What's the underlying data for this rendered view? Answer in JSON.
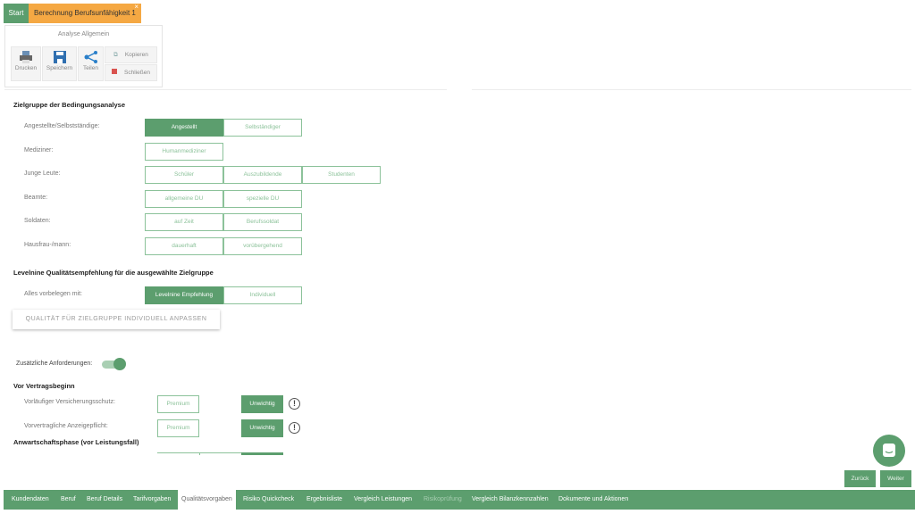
{
  "tabs": {
    "start": "Start",
    "calc": "Berechnung Berufsunfähigkeit 1",
    "close": "×"
  },
  "toolbar": {
    "title": "Analyse Allgemein",
    "print": "Drucken",
    "save": "Speichern",
    "share": "Teilen",
    "copy": "Kopieren",
    "close": "Schließen"
  },
  "section1": {
    "title": "Zielgruppe der Bedingungsanalyse",
    "rows": [
      {
        "label": "Angestellte/Selbstständige:",
        "options": [
          "Angestellt",
          "Selbständiger"
        ],
        "selected": 0
      },
      {
        "label": "Mediziner:",
        "options": [
          "Humanmediziner"
        ],
        "selected": -1
      },
      {
        "label": "Junge Leute:",
        "options": [
          "Schüler",
          "Auszubildende",
          "Studenten"
        ],
        "selected": -1
      },
      {
        "label": "Beamte:",
        "options": [
          "allgemeine DU",
          "spezielle DU"
        ],
        "selected": -1
      },
      {
        "label": "Soldaten:",
        "options": [
          "auf Zeit",
          "Berufssoldat"
        ],
        "selected": -1
      },
      {
        "label": "Hausfrau-/mann:",
        "options": [
          "dauerhaft",
          "vorübergehend"
        ],
        "selected": -1
      }
    ]
  },
  "section2": {
    "title": "Levelnine Qualitätsempfehlung für die ausgewählte Zielgruppe",
    "label": "Alles vorbelegen mit:",
    "options": [
      "Levelnine Empfehlung",
      "Individuell"
    ],
    "selected": 0,
    "button": "QUALITÄT FÜR ZIELGRUPPE INDIVIDUELL ANPASSEN"
  },
  "extra": {
    "label": "Zusätzliche Anforderungen:",
    "enabled": true
  },
  "section3": {
    "title": "Vor Vertragsbeginn",
    "rows": [
      {
        "label": "Vorläufiger Versicherungsschutz:",
        "premium": "Premium",
        "unimportant": "Unwichtig"
      },
      {
        "label": "Vorvertragliche Anzeigepflicht:",
        "premium": "Premium",
        "unimportant": "Unwichtig"
      }
    ]
  },
  "section4": {
    "title": "Anwartschaftsphase (vor Leistungsfall)"
  },
  "nav": {
    "items": [
      "Kundendaten",
      "Beruf",
      "Beruf Details",
      "Tarifvorgaben",
      "Qualitätsvorgaben",
      "Risiko Quickcheck",
      "Ergebnisliste",
      "Vergleich Leistungen",
      "Risikoprüfung",
      "Vergleich Bilanzkennzahlen",
      "Dokumente und Aktionen"
    ],
    "active": 4,
    "disabled": 8,
    "back": "Zurück",
    "next": "Weiter"
  },
  "colors": {
    "accent": "#5c9e6e",
    "tab": "#f5a843"
  }
}
